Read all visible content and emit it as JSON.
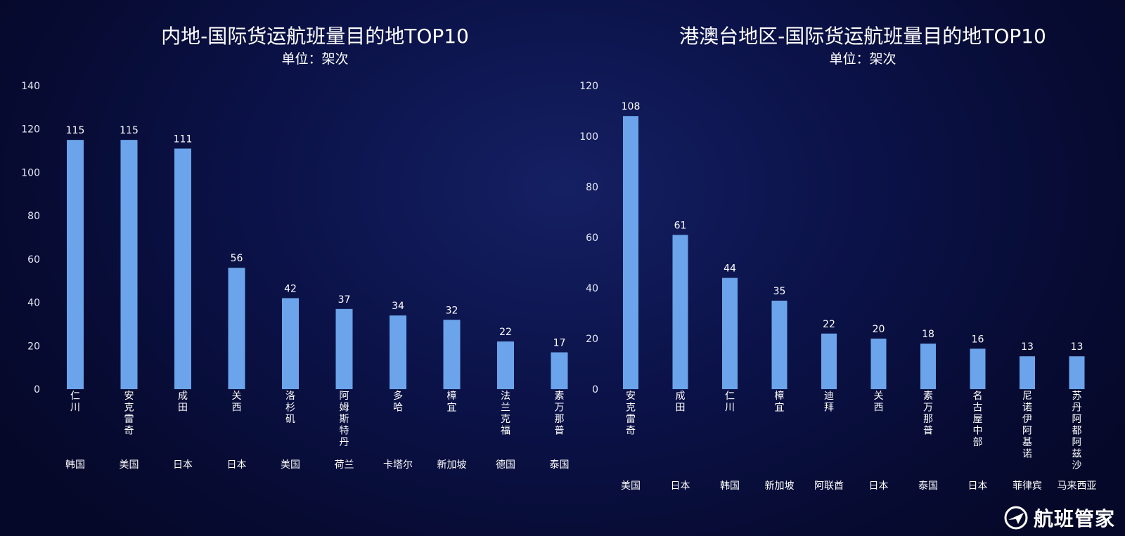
{
  "chart_data": [
    {
      "type": "bar",
      "title": "内地-国际货运航班量目的地TOP10",
      "subtitle": "单位：架次",
      "categories": [
        "仁川",
        "安克雷奇",
        "成田",
        "关西",
        "洛杉矶",
        "阿姆斯特丹",
        "多哈",
        "樟宜",
        "法兰克福",
        "素万那普"
      ],
      "countries": [
        "韩国",
        "美国",
        "日本",
        "日本",
        "美国",
        "荷兰",
        "卡塔尔",
        "新加坡",
        "德国",
        "泰国"
      ],
      "values": [
        115,
        115,
        111,
        56,
        42,
        37,
        34,
        32,
        22,
        17
      ],
      "ylim": [
        0,
        140
      ],
      "yticks": [
        0,
        20,
        40,
        60,
        80,
        100,
        120,
        140
      ],
      "xlabel": "",
      "ylabel": "",
      "grid": false,
      "bar_color": "#6ba4ea"
    },
    {
      "type": "bar",
      "title": "港澳台地区-国际货运航班量目的地TOP10",
      "subtitle": "单位：架次",
      "categories": [
        "安克雷奇",
        "成田",
        "仁川",
        "樟宜",
        "迪拜",
        "关西",
        "素万那普",
        "名古屋中部",
        "尼诺伊阿基诺",
        "苏丹阿都阿兹沙"
      ],
      "countries": [
        "美国",
        "日本",
        "韩国",
        "新加坡",
        "阿联酋",
        "日本",
        "泰国",
        "日本",
        "菲律宾",
        "马来西亚"
      ],
      "values": [
        108,
        61,
        44,
        35,
        22,
        20,
        18,
        16,
        13,
        13
      ],
      "ylim": [
        0,
        120
      ],
      "yticks": [
        0,
        20,
        40,
        60,
        80,
        100,
        120
      ],
      "xlabel": "",
      "ylabel": "",
      "grid": false,
      "bar_color": "#6ba4ea"
    }
  ],
  "brand": {
    "name": "航班管家",
    "logo_icon": "brand-logo-icon"
  },
  "colors": {
    "background": "#0b1248",
    "bar": "#6ba4ea",
    "text": "#ffffff"
  }
}
